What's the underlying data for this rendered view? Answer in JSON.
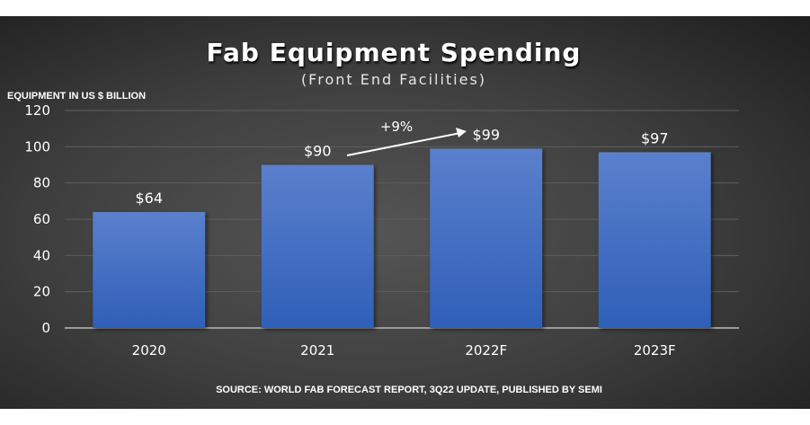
{
  "chart_data": {
    "type": "bar",
    "title": "Fab Equipment Spending",
    "subtitle": "(Front End Facilities)",
    "ylabel": "EQUIPMENT IN US $ BILLION",
    "xlabel": "",
    "categories": [
      "2020",
      "2021",
      "2022F",
      "2023F"
    ],
    "values": [
      64,
      90,
      99,
      97
    ],
    "data_labels": [
      "$64",
      "$90",
      "$99",
      "$97"
    ],
    "ylim": [
      0,
      120
    ],
    "yticks": [
      "0",
      "20",
      "40",
      "60",
      "80",
      "100",
      "120"
    ],
    "grid": true,
    "annotation": {
      "text": "+9%",
      "from": "2021",
      "to": "2022F"
    },
    "source": "SOURCE: WORLD FAB FORECAST REPORT, 3Q22 UPDATE, PUBLISHED BY SEMI",
    "colors": {
      "bar_top": "#5a80cc",
      "bar_bottom": "#2f5fb8",
      "background": "#3f3f3f",
      "text": "#ffffff"
    }
  }
}
